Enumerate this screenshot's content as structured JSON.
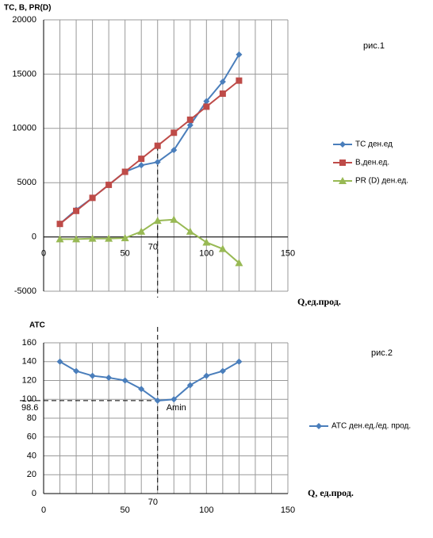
{
  "chart_data": [
    {
      "type": "line",
      "ylabel": "TC, B, PR(D)",
      "xlabel": "Q,ед.прод.",
      "note": "рис.1",
      "x": [
        10,
        20,
        30,
        40,
        50,
        60,
        70,
        80,
        90,
        100,
        110,
        120
      ],
      "series": [
        {
          "name": "TC ден.ед",
          "color": "#4a7ebb",
          "marker": "diamond",
          "values": [
            1200,
            2500,
            3600,
            4800,
            6000,
            6600,
            6900,
            8000,
            10300,
            12500,
            14300,
            16800
          ]
        },
        {
          "name": "B,ден.ед.",
          "color": "#be4b48",
          "marker": "square",
          "values": [
            1200,
            2400,
            3600,
            4800,
            6000,
            7200,
            8400,
            9600,
            10800,
            12000,
            13200,
            14400
          ]
        },
        {
          "name": "PR (D) ден.ед.",
          "color": "#98b954",
          "marker": "triangle",
          "values": [
            -200,
            -200,
            -150,
            -150,
            -100,
            500,
            1500,
            1600,
            500,
            -500,
            -1100,
            -2400
          ]
        }
      ],
      "xlim": [
        0,
        150
      ],
      "xticks": [
        0,
        50,
        100,
        150
      ],
      "ylim": [
        -5000,
        20000
      ],
      "yticks": [
        -5000,
        0,
        5000,
        10000,
        15000,
        20000
      ],
      "grid": true,
      "legend": "right",
      "marker_x": 70
    },
    {
      "type": "line",
      "ylabel": "ATC",
      "xlabel": "Q, ед.прод.",
      "note": "рис.2",
      "x": [
        10,
        20,
        30,
        40,
        50,
        60,
        70,
        80,
        90,
        100,
        110,
        120
      ],
      "series": [
        {
          "name": "ATC ден.ед./ед. прод.",
          "color": "#4a7ebb",
          "marker": "diamond",
          "values": [
            140,
            130,
            125,
            123,
            120,
            111,
            98.6,
            100,
            115,
            125,
            130,
            140
          ]
        }
      ],
      "xlim": [
        0,
        150
      ],
      "xticks": [
        0,
        50,
        100,
        150
      ],
      "ylim": [
        0,
        160
      ],
      "yticks": [
        0,
        20,
        40,
        60,
        80,
        100,
        120,
        140,
        160
      ],
      "grid": true,
      "legend": "right",
      "marker_x": 70,
      "marker_y": 98.6,
      "min_label": "Amin"
    }
  ]
}
